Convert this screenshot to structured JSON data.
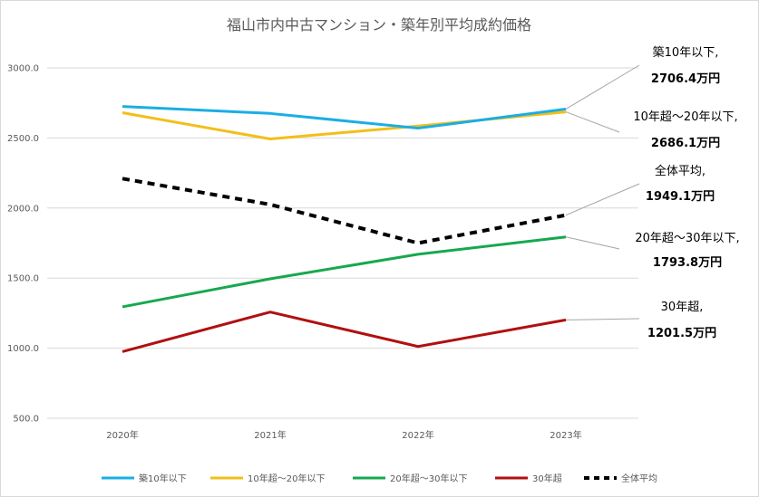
{
  "chart_data": {
    "type": "line",
    "title": "福山市内中古マンション・築年別平均成約価格",
    "xlabel": "",
    "ylabel": "",
    "categories": [
      "2020年",
      "2021年",
      "2022年",
      "2023年"
    ],
    "ylim": [
      500,
      3000
    ],
    "yticks": [
      "500.0",
      "1000.0",
      "1500.0",
      "2000.0",
      "2500.0",
      "3000.0"
    ],
    "grid": true,
    "legend_position": "bottom",
    "series": [
      {
        "name": "築10年以下",
        "color": "#1aaee3",
        "dashed": false,
        "values": [
          2725,
          2675,
          2570,
          2706.4
        ]
      },
      {
        "name": "10年超～20年以下",
        "color": "#f2bf1a",
        "dashed": false,
        "values": [
          2680,
          2493,
          2585,
          2686.1
        ]
      },
      {
        "name": "20年超～30年以下",
        "color": "#17a84f",
        "dashed": false,
        "values": [
          1295,
          1495,
          1670,
          1793.8
        ]
      },
      {
        "name": "30年超",
        "color": "#b01010",
        "dashed": false,
        "values": [
          975,
          1258,
          1012,
          1201.5
        ]
      },
      {
        "name": "全体平均",
        "color": "#000000",
        "dashed": true,
        "values": [
          2210,
          2025,
          1750,
          1949.1
        ]
      }
    ],
    "annotations": [
      {
        "series": "築10年以下",
        "name": "築10年以下,",
        "value": "2706.4万円"
      },
      {
        "series": "10年超～20年以下",
        "name": "10年超～20年以下,",
        "value": "2686.1万円"
      },
      {
        "series": "全体平均",
        "name": "全体平均,",
        "value": "1949.1万円"
      },
      {
        "series": "20年超～30年以下",
        "name": "20年超～30年以下,",
        "value": "1793.8万円"
      },
      {
        "series": "30年超",
        "name": "30年超,",
        "value": "1201.5万円"
      }
    ]
  }
}
